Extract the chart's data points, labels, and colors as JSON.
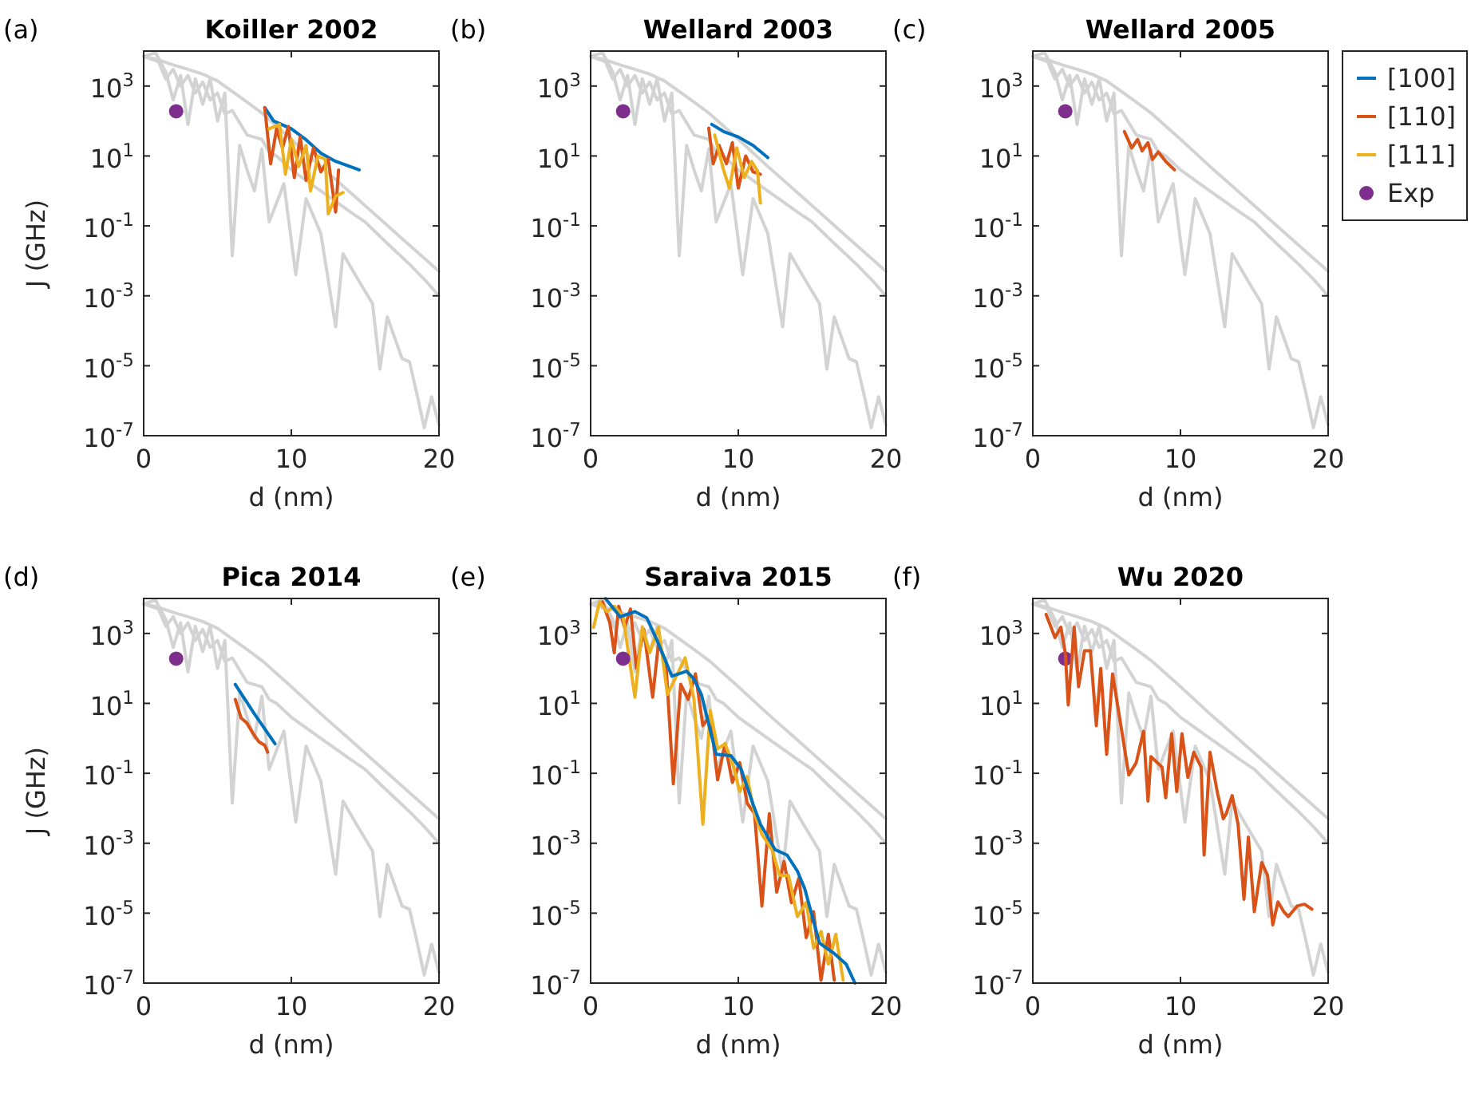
{
  "chart_data": [
    {
      "type": "line",
      "title": "Koiller 2002",
      "annotations": [
        "(a)"
      ],
      "xlabel": "d (nm)",
      "ylabel": "J (GHz)",
      "log": "y",
      "xlim": [
        0,
        20
      ],
      "xticks": [
        0,
        10,
        20
      ],
      "ylim": [
        1e-07,
        10000.0
      ],
      "yticks": [
        {
          "value": 1e-07,
          "label": "10$^{-7}$"
        },
        {
          "value": 1e-05,
          "label": "10$^{-5}$"
        },
        {
          "value": 0.001,
          "label": "10$^{-3}$"
        },
        {
          "value": 0.1,
          "label": "10$^{-1}$"
        },
        {
          "value": 10,
          "label": "10$^{1}$"
        },
        {
          "value": 1000,
          "label": "10$^{3}$"
        }
      ],
      "series": [
        {
          "color": "#d3d3d3",
          "x": [
            0,
            1,
            2,
            3,
            4,
            5,
            6,
            7,
            8,
            10,
            12,
            14,
            16,
            18,
            20
          ],
          "values": [
            7000.0,
            5600.0,
            4000.0,
            3000.0,
            2200.0,
            1400.0,
            700.0,
            350.0,
            170.0,
            30,
            5,
            0.9,
            0.16,
            0.028,
            0.005
          ]
        },
        {
          "color": "#d3d3d3",
          "x": [
            0,
            1,
            1.5,
            2,
            2.5,
            3,
            3.5,
            4,
            4.5,
            5,
            5.5,
            6,
            7,
            8,
            8.5,
            9,
            10,
            11,
            12,
            13,
            14,
            15,
            16,
            17,
            18,
            19,
            20
          ],
          "values": [
            7000.0,
            5000.0,
            1600.0,
            3000.0,
            1000.0,
            2000.0,
            630.0,
            1300.0,
            400.0,
            630.0,
            160.0,
            200.0,
            40,
            30,
            13,
            10,
            4,
            2,
            1,
            0.5,
            0.25,
            0.13,
            0.05,
            0.02,
            0.008,
            0.003,
            0.001
          ]
        },
        {
          "color": "#d3d3d3",
          "x": [
            0,
            0.8,
            1.5,
            2,
            2.5,
            3,
            3.5,
            4,
            4.5,
            5,
            5.5,
            6,
            6.5,
            7,
            7.5,
            8,
            8.5,
            9.5,
            10.3,
            11,
            12,
            13,
            13.5,
            14.5,
            15.5,
            16,
            16.5,
            17.5,
            18,
            18.5,
            19,
            19.5,
            20
          ],
          "values": [
            7000.0,
            9000.0,
            2500.0,
            400.0,
            2000.0,
            80,
            1600.0,
            300.0,
            1600.0,
            100,
            630.0,
            0.014,
            20,
            4,
            1,
            16,
            0.13,
            1.6,
            0.004,
            0.6,
            0.06,
            0.00013,
            0.016,
            0.003,
            0.0006,
            8e-06,
            0.00025,
            1.6e-05,
            1.3e-05,
            1.6e-06,
            1.7e-07,
            1.3e-06,
            2e-07
          ]
        },
        {
          "color": "#0072bd",
          "x": [
            8.2,
            8.8,
            10,
            11,
            12,
            13,
            14.6
          ],
          "values": [
            240,
            100,
            60,
            29,
            12,
            7,
            4
          ]
        },
        {
          "color": "#d95319",
          "x": [
            8.2,
            8.6,
            9,
            9.4,
            9.8,
            10.2,
            10.6,
            11,
            11.5,
            12,
            12.5,
            13,
            13.2
          ],
          "values": [
            240,
            6,
            60,
            17,
            70,
            2.4,
            35,
            2,
            17,
            3.5,
            8,
            0.25,
            4
          ]
        },
        {
          "color": "#edb120",
          "x": [
            8.5,
            9.2,
            9.6,
            10,
            10.5,
            11,
            11.3,
            11.8,
            12.3,
            12.5,
            13,
            13.5
          ],
          "values": [
            60,
            80,
            3,
            30,
            5,
            20,
            1,
            10,
            8,
            0.22,
            0.7,
            0.9
          ]
        },
        {
          "type": "scatter",
          "marker": "circle",
          "color": "#7e2f8e",
          "x": [
            2.2
          ],
          "values": [
            190
          ]
        }
      ]
    },
    {
      "type": "line",
      "title": "Wellard 2003",
      "annotations": [
        "(b)"
      ],
      "xlabel": "d (nm)",
      "log": "y",
      "xlim": [
        0,
        20
      ],
      "xticks": [
        0,
        10,
        20
      ],
      "ylim": [
        1e-07,
        10000.0
      ],
      "yticks": [
        {
          "value": 1e-07,
          "label": "10$^{-7}$"
        },
        {
          "value": 1e-05,
          "label": "10$^{-5}$"
        },
        {
          "value": 0.001,
          "label": "10$^{-3}$"
        },
        {
          "value": 0.1,
          "label": "10$^{-1}$"
        },
        {
          "value": 10,
          "label": "10$^{1}$"
        },
        {
          "value": 1000,
          "label": "10$^{3}$"
        }
      ],
      "series": [
        {
          "color": "#d3d3d3",
          "x": [
            0,
            1,
            2,
            3,
            4,
            5,
            6,
            7,
            8,
            10,
            12,
            14,
            16,
            18,
            20
          ],
          "values": [
            7000.0,
            5600.0,
            4000.0,
            3000.0,
            2200.0,
            1400.0,
            700.0,
            350.0,
            170.0,
            30,
            5,
            0.9,
            0.16,
            0.028,
            0.005
          ]
        },
        {
          "color": "#d3d3d3",
          "x": [
            0,
            1,
            1.5,
            2,
            2.5,
            3,
            3.5,
            4,
            4.5,
            5,
            5.5,
            6,
            7,
            8,
            8.5,
            9,
            10,
            11,
            12,
            13,
            14,
            15,
            16,
            17,
            18,
            19,
            20
          ],
          "values": [
            7000.0,
            5000.0,
            1600.0,
            3000.0,
            1000.0,
            2000.0,
            630.0,
            1300.0,
            400.0,
            630.0,
            160.0,
            200.0,
            40,
            30,
            13,
            10,
            4,
            2,
            1,
            0.5,
            0.25,
            0.13,
            0.05,
            0.02,
            0.008,
            0.003,
            0.001
          ]
        },
        {
          "color": "#d3d3d3",
          "x": [
            0,
            0.8,
            1.5,
            2,
            2.5,
            3,
            3.5,
            4,
            4.5,
            5,
            5.5,
            6,
            6.5,
            7,
            7.5,
            8,
            8.5,
            9.5,
            10.3,
            11,
            12,
            13,
            13.5,
            14.5,
            15.5,
            16,
            16.5,
            17.5,
            18,
            18.5,
            19,
            19.5,
            20
          ],
          "values": [
            7000.0,
            9000.0,
            2500.0,
            400.0,
            2000.0,
            80,
            1600.0,
            300.0,
            1600.0,
            100,
            630.0,
            0.014,
            20,
            4,
            1,
            16,
            0.13,
            1.6,
            0.004,
            0.6,
            0.06,
            0.00013,
            0.016,
            0.003,
            0.0006,
            8e-06,
            0.00025,
            1.6e-05,
            1.3e-05,
            1.6e-06,
            1.7e-07,
            1.3e-06,
            2e-07
          ]
        },
        {
          "color": "#0072bd",
          "x": [
            8.2,
            9,
            10,
            11,
            12
          ],
          "values": [
            80,
            50,
            35,
            20,
            9
          ]
        },
        {
          "color": "#d95319",
          "x": [
            8,
            8.3,
            8.7,
            9.2,
            9.6,
            10,
            10.5,
            11,
            11.5
          ],
          "values": [
            63,
            6,
            20,
            6,
            24,
            1.2,
            10,
            3.5,
            3
          ]
        },
        {
          "color": "#edb120",
          "x": [
            8.4,
            9,
            9.4,
            9.9,
            10.4,
            10.9,
            11.3,
            11.5
          ],
          "values": [
            40,
            4,
            1.2,
            17,
            2.4,
            7,
            3.7,
            0.45
          ]
        },
        {
          "type": "scatter",
          "marker": "circle",
          "color": "#7e2f8e",
          "x": [
            2.2
          ],
          "values": [
            190
          ]
        }
      ]
    },
    {
      "type": "line",
      "title": "Wellard 2005",
      "annotations": [
        "(c)"
      ],
      "xlabel": "d (nm)",
      "log": "y",
      "legend": "right",
      "xlim": [
        0,
        20
      ],
      "xticks": [
        0,
        10,
        20
      ],
      "ylim": [
        1e-07,
        10000.0
      ],
      "yticks": [
        {
          "value": 1e-07,
          "label": "10$^{-7}$"
        },
        {
          "value": 1e-05,
          "label": "10$^{-5}$"
        },
        {
          "value": 0.001,
          "label": "10$^{-3}$"
        },
        {
          "value": 0.1,
          "label": "10$^{-1}$"
        },
        {
          "value": 10,
          "label": "10$^{1}$"
        },
        {
          "value": 1000,
          "label": "10$^{3}$"
        }
      ],
      "series": [
        {
          "color": "#d3d3d3",
          "x": [
            0,
            1,
            2,
            3,
            4,
            5,
            6,
            7,
            8,
            10,
            12,
            14,
            16,
            18,
            20
          ],
          "values": [
            7000.0,
            5600.0,
            4000.0,
            3000.0,
            2200.0,
            1400.0,
            700.0,
            350.0,
            170.0,
            30,
            5,
            0.9,
            0.16,
            0.028,
            0.005
          ]
        },
        {
          "color": "#d3d3d3",
          "x": [
            0,
            1,
            1.5,
            2,
            2.5,
            3,
            3.5,
            4,
            4.5,
            5,
            5.5,
            6,
            7,
            8,
            8.5,
            9,
            10,
            11,
            12,
            13,
            14,
            15,
            16,
            17,
            18,
            19,
            20
          ],
          "values": [
            7000.0,
            5000.0,
            1600.0,
            3000.0,
            1000.0,
            2000.0,
            630.0,
            1300.0,
            400.0,
            630.0,
            160.0,
            200.0,
            40,
            30,
            13,
            10,
            4,
            2,
            1,
            0.5,
            0.25,
            0.13,
            0.05,
            0.02,
            0.008,
            0.003,
            0.001
          ]
        },
        {
          "color": "#d3d3d3",
          "x": [
            0,
            0.8,
            1.5,
            2,
            2.5,
            3,
            3.5,
            4,
            4.5,
            5,
            5.5,
            6,
            6.5,
            7,
            7.5,
            8,
            8.5,
            9.5,
            10.3,
            11,
            12,
            13,
            13.5,
            14.5,
            15.5,
            16,
            16.5,
            17.5,
            18,
            18.5,
            19,
            19.5,
            20
          ],
          "values": [
            7000.0,
            9000.0,
            2500.0,
            400.0,
            2000.0,
            80,
            1600.0,
            300.0,
            1600.0,
            100,
            630.0,
            0.014,
            20,
            4,
            1,
            16,
            0.13,
            1.6,
            0.004,
            0.6,
            0.06,
            0.00013,
            0.016,
            0.003,
            0.0006,
            8e-06,
            0.00025,
            1.6e-05,
            1.3e-05,
            1.6e-06,
            1.7e-07,
            1.3e-06,
            2e-07
          ]
        },
        {
          "name": "[100]",
          "color": "#0072bd"
        },
        {
          "name": "[110]",
          "color": "#d95319",
          "x": [
            6.2,
            6.7,
            7.1,
            7.4,
            7.8,
            8.1,
            8.5,
            9,
            9.6
          ],
          "values": [
            50,
            17,
            30,
            14,
            24,
            8,
            13,
            7,
            4
          ]
        },
        {
          "name": "[111]",
          "color": "#edb120"
        },
        {
          "name": "Exp",
          "type": "scatter",
          "marker": "circle",
          "color": "#7e2f8e",
          "x": [
            2.2
          ],
          "values": [
            190
          ]
        }
      ]
    },
    {
      "type": "line",
      "title": "Pica 2014",
      "annotations": [
        "(d)"
      ],
      "xlabel": "d (nm)",
      "ylabel": "J (GHz)",
      "log": "y",
      "xlim": [
        0,
        20
      ],
      "xticks": [
        0,
        10,
        20
      ],
      "ylim": [
        1e-07,
        10000.0
      ],
      "yticks": [
        {
          "value": 1e-07,
          "label": "10$^{-7}$"
        },
        {
          "value": 1e-05,
          "label": "10$^{-5}$"
        },
        {
          "value": 0.001,
          "label": "10$^{-3}$"
        },
        {
          "value": 0.1,
          "label": "10$^{-1}$"
        },
        {
          "value": 10,
          "label": "10$^{1}$"
        },
        {
          "value": 1000,
          "label": "10$^{3}$"
        }
      ],
      "series": [
        {
          "color": "#d3d3d3",
          "x": [
            0,
            1,
            2,
            3,
            4,
            5,
            6,
            7,
            8,
            10,
            12,
            14,
            16,
            18,
            20
          ],
          "values": [
            7000.0,
            5600.0,
            4000.0,
            3000.0,
            2200.0,
            1400.0,
            700.0,
            350.0,
            170.0,
            30,
            5,
            0.9,
            0.16,
            0.028,
            0.005
          ]
        },
        {
          "color": "#d3d3d3",
          "x": [
            0,
            1,
            1.5,
            2,
            2.5,
            3,
            3.5,
            4,
            4.5,
            5,
            5.5,
            6,
            7,
            8,
            8.5,
            9,
            10,
            11,
            12,
            13,
            14,
            15,
            16,
            17,
            18,
            19,
            20
          ],
          "values": [
            7000.0,
            5000.0,
            1600.0,
            3000.0,
            1000.0,
            2000.0,
            630.0,
            1300.0,
            400.0,
            630.0,
            160.0,
            200.0,
            40,
            30,
            13,
            10,
            4,
            2,
            1,
            0.5,
            0.25,
            0.13,
            0.05,
            0.02,
            0.008,
            0.003,
            0.001
          ]
        },
        {
          "color": "#d3d3d3",
          "x": [
            0,
            0.8,
            1.5,
            2,
            2.5,
            3,
            3.5,
            4,
            4.5,
            5,
            5.5,
            6,
            6.5,
            7,
            7.5,
            8,
            8.5,
            9.5,
            10.3,
            11,
            12,
            13,
            13.5,
            14.5,
            15.5,
            16,
            16.5,
            17.5,
            18,
            18.5,
            19,
            19.5,
            20
          ],
          "values": [
            7000.0,
            9000.0,
            2500.0,
            400.0,
            2000.0,
            80,
            1600.0,
            300.0,
            1600.0,
            100,
            630.0,
            0.014,
            20,
            4,
            1,
            16,
            0.13,
            1.6,
            0.004,
            0.6,
            0.06,
            0.00013,
            0.016,
            0.003,
            0.0006,
            8e-06,
            0.00025,
            1.6e-05,
            1.3e-05,
            1.6e-06,
            1.7e-07,
            1.3e-06,
            2e-07
          ]
        },
        {
          "color": "#0072bd",
          "x": [
            6.2,
            7.5,
            8.9
          ],
          "values": [
            35,
            5,
            0.7
          ]
        },
        {
          "color": "#d95319",
          "x": [
            6.2,
            6.6,
            7,
            7.4,
            7.8,
            8.2,
            8.4
          ],
          "values": [
            13,
            3.8,
            2.7,
            1.4,
            0.8,
            0.63,
            0.4
          ]
        },
        {
          "type": "scatter",
          "marker": "circle",
          "color": "#7e2f8e",
          "x": [
            2.2
          ],
          "values": [
            190
          ]
        }
      ]
    },
    {
      "type": "line",
      "title": "Saraiva 2015",
      "annotations": [
        "(e)"
      ],
      "xlabel": "d (nm)",
      "log": "y",
      "xlim": [
        0,
        20
      ],
      "xticks": [
        0,
        10,
        20
      ],
      "ylim": [
        1e-07,
        10000.0
      ],
      "yticks": [
        {
          "value": 1e-07,
          "label": "10$^{-7}$"
        },
        {
          "value": 1e-05,
          "label": "10$^{-5}$"
        },
        {
          "value": 0.001,
          "label": "10$^{-3}$"
        },
        {
          "value": 0.1,
          "label": "10$^{-1}$"
        },
        {
          "value": 10,
          "label": "10$^{1}$"
        },
        {
          "value": 1000,
          "label": "10$^{3}$"
        }
      ],
      "series": [
        {
          "color": "#d3d3d3",
          "x": [
            0,
            1,
            2,
            3,
            4,
            5,
            6,
            7,
            8,
            10,
            12,
            14,
            16,
            18,
            20
          ],
          "values": [
            7000.0,
            5600.0,
            4000.0,
            3000.0,
            2200.0,
            1400.0,
            700.0,
            350.0,
            170.0,
            30,
            5,
            0.9,
            0.16,
            0.028,
            0.005
          ]
        },
        {
          "color": "#d3d3d3",
          "x": [
            0,
            1,
            1.5,
            2,
            2.5,
            3,
            3.5,
            4,
            4.5,
            5,
            5.5,
            6,
            7,
            8,
            8.5,
            9,
            10,
            11,
            12,
            13,
            14,
            15,
            16,
            17,
            18,
            19,
            20
          ],
          "values": [
            7000.0,
            5000.0,
            1600.0,
            3000.0,
            1000.0,
            2000.0,
            630.0,
            1300.0,
            400.0,
            630.0,
            160.0,
            200.0,
            40,
            30,
            13,
            10,
            4,
            2,
            1,
            0.5,
            0.25,
            0.13,
            0.05,
            0.02,
            0.008,
            0.003,
            0.001
          ]
        },
        {
          "color": "#d3d3d3",
          "x": [
            0,
            0.8,
            1.5,
            2,
            2.5,
            3,
            3.5,
            4,
            4.5,
            5,
            5.5,
            6,
            6.5,
            7,
            7.5,
            8,
            8.5,
            9.5,
            10.3,
            11,
            12,
            13,
            13.5,
            14.5,
            15.5,
            16,
            16.5,
            17.5,
            18,
            18.5,
            19,
            19.5,
            20
          ],
          "values": [
            7000.0,
            9000.0,
            2500.0,
            400.0,
            2000.0,
            80,
            1600.0,
            300.0,
            1600.0,
            100,
            630.0,
            0.014,
            20,
            4,
            1,
            16,
            0.13,
            1.6,
            0.004,
            0.6,
            0.06,
            0.00013,
            0.016,
            0.003,
            0.0006,
            8e-06,
            0.00025,
            1.6e-05,
            1.3e-05,
            1.6e-06,
            1.7e-07,
            1.3e-06,
            2e-07
          ]
        },
        {
          "color": "#d95319",
          "x": [
            0.8,
            1.3,
            1.6,
            1.9,
            2.3,
            2.7,
            3.1,
            3.6,
            4.2,
            4.6,
            5.1,
            5.6,
            6.1,
            6.6,
            7.1,
            7.6,
            8.1,
            8.6,
            9.1,
            9.6,
            10.1,
            10.6,
            11.1,
            11.6,
            12.1,
            12.6,
            13.1,
            13.6,
            14.1,
            14.6,
            15.1,
            15.6,
            16.1,
            16.5
          ],
          "values": [
            8000.0,
            2000.0,
            280,
            6000.0,
            1500.0,
            5000.0,
            100,
            1300.0,
            15,
            540,
            140,
            0.05,
            35,
            13,
            70,
            2.3,
            4.6,
            0.065,
            0.7,
            0.055,
            0.2,
            0.014,
            0.007,
            1.6e-05,
            0.007,
            4e-05,
            0.0003,
            2e-05,
            0.0001,
            2e-06,
            1.1e-05,
            1.2e-07,
            2.5e-06,
            1.2e-07
          ]
        },
        {
          "color": "#edb120",
          "x": [
            0.2,
            0.6,
            1.1,
            1.6,
            2.2,
            3,
            3.5,
            4,
            4.6,
            5.2,
            5.8,
            6.4,
            7,
            7.6,
            8.1,
            8.6,
            9.1,
            9.6,
            10.1,
            10.6,
            11.1,
            11.6,
            12.3,
            12.8,
            13.4,
            14,
            14.6,
            15.1,
            15.6,
            16.1,
            16.6,
            17.1
          ],
          "values": [
            1500.0,
            8000.0,
            4200.0,
            6000.0,
            3000.0,
            15,
            1500.0,
            280,
            1500.0,
            18,
            60,
            200,
            13,
            0.0035,
            6.3,
            0.5,
            0.7,
            0.2,
            0.03,
            0.08,
            0.007,
            0.0018,
            0.00063,
            0.00012,
            0.00012,
            8e-06,
            2e-05,
            1e-06,
            3e-06,
            3.5e-07,
            2.5e-06,
            1.2e-07
          ]
        },
        {
          "color": "#0072bd",
          "x": [
            1,
            2,
            3,
            3.8,
            4.5,
            5.5,
            6.5,
            7,
            7.5,
            8.5,
            9.5,
            10.2,
            11,
            11.5,
            12.5,
            13.3,
            14,
            14.5,
            15.5,
            16.5,
            17.3,
            17.9
          ],
          "values": [
            10000.0,
            3000.0,
            4200.0,
            2800.0,
            630,
            60,
            83,
            50,
            18,
            0.35,
            0.32,
            0.13,
            0.013,
            0.0035,
            0.00065,
            0.00046,
            0.00016,
            5e-05,
            1.4e-06,
            7e-07,
            3.5e-07,
            1e-07
          ]
        },
        {
          "type": "scatter",
          "marker": "circle",
          "color": "#7e2f8e",
          "x": [
            2.2
          ],
          "values": [
            190
          ]
        }
      ]
    },
    {
      "type": "line",
      "title": "Wu 2020",
      "annotations": [
        "(f)"
      ],
      "xlabel": "d (nm)",
      "log": "y",
      "xlim": [
        0,
        20
      ],
      "xticks": [
        0,
        10,
        20
      ],
      "ylim": [
        1e-07,
        10000.0
      ],
      "yticks": [
        {
          "value": 1e-07,
          "label": "10$^{-7}$"
        },
        {
          "value": 1e-05,
          "label": "10$^{-5}$"
        },
        {
          "value": 0.001,
          "label": "10$^{-3}$"
        },
        {
          "value": 0.1,
          "label": "10$^{-1}$"
        },
        {
          "value": 10,
          "label": "10$^{1}$"
        },
        {
          "value": 1000,
          "label": "10$^{3}$"
        }
      ],
      "series": [
        {
          "color": "#d3d3d3",
          "x": [
            0,
            1,
            2,
            3,
            4,
            5,
            6,
            7,
            8,
            10,
            12,
            14,
            16,
            18,
            20
          ],
          "values": [
            7000.0,
            5600.0,
            4000.0,
            3000.0,
            2200.0,
            1400.0,
            700.0,
            350.0,
            170.0,
            30,
            5,
            0.9,
            0.16,
            0.028,
            0.005
          ]
        },
        {
          "color": "#d3d3d3",
          "x": [
            0,
            1,
            1.5,
            2,
            2.5,
            3,
            3.5,
            4,
            4.5,
            5,
            5.5,
            6,
            7,
            8,
            8.5,
            9,
            10,
            11,
            12,
            13,
            14,
            15,
            16,
            17,
            18,
            19,
            20
          ],
          "values": [
            7000.0,
            5000.0,
            1600.0,
            3000.0,
            1000.0,
            2000.0,
            630.0,
            1300.0,
            400.0,
            630.0,
            160.0,
            200.0,
            40,
            30,
            13,
            10,
            4,
            2,
            1,
            0.5,
            0.25,
            0.13,
            0.05,
            0.02,
            0.008,
            0.003,
            0.001
          ]
        },
        {
          "color": "#d3d3d3",
          "x": [
            0,
            0.8,
            1.5,
            2,
            2.5,
            3,
            3.5,
            4,
            4.5,
            5,
            5.5,
            6,
            6.5,
            7,
            7.5,
            8,
            8.5,
            9.5,
            10.3,
            11,
            12,
            13,
            13.5,
            14.5,
            15.5,
            16,
            16.5,
            17.5,
            18,
            18.5,
            19,
            19.5,
            20
          ],
          "values": [
            7000.0,
            9000.0,
            2500.0,
            400.0,
            2000.0,
            80,
            1600.0,
            300.0,
            1600.0,
            100,
            630.0,
            0.014,
            20,
            4,
            1,
            16,
            0.13,
            1.6,
            0.004,
            0.6,
            0.06,
            0.00013,
            0.016,
            0.003,
            0.0006,
            8e-06,
            0.00025,
            1.6e-05,
            1.3e-05,
            1.6e-06,
            1.7e-07,
            1.3e-06,
            2e-07
          ]
        },
        {
          "type": "scatter",
          "marker": "circle",
          "color": "#7e2f8e",
          "x": [
            2.2
          ],
          "values": [
            190
          ]
        },
        {
          "color": "#d95319",
          "x": [
            0.9,
            1.5,
            1.9,
            2.2,
            2.4,
            2.8,
            3.1,
            3.5,
            3.9,
            4.3,
            4.6,
            5,
            5.4,
            6.5,
            7,
            7.5,
            7.8,
            8,
            8.75,
            9,
            9.4,
            9.75,
            10.1,
            10.5,
            10.9,
            11.4,
            11.6,
            12,
            12.5,
            12.9,
            13.1,
            13.5,
            13.9,
            14.3,
            14.6,
            15,
            15.5,
            15.9,
            16.25,
            16.6,
            17,
            17.3,
            17.9,
            18.4,
            18.9
          ],
          "values": [
            3500,
            760,
            1500,
            280,
            9,
            1500,
            30,
            320,
            320,
            2.3,
            100,
            0.35,
            70,
            0.09,
            0.2,
            1.6,
            0.016,
            0.3,
            0.15,
            0.02,
            1.35,
            0.03,
            1.35,
            0.076,
            0.4,
            0.15,
            0.00046,
            0.4,
            0.028,
            0.005,
            0.007,
            0.023,
            0.0035,
            2.5e-05,
            0.0015,
            1.1e-05,
            0.00028,
            0.00012,
            4.6e-06,
            2.1e-05,
            1.1e-05,
            8e-06,
            1.6e-05,
            1.8e-05,
            1.3e-05
          ]
        }
      ]
    }
  ]
}
